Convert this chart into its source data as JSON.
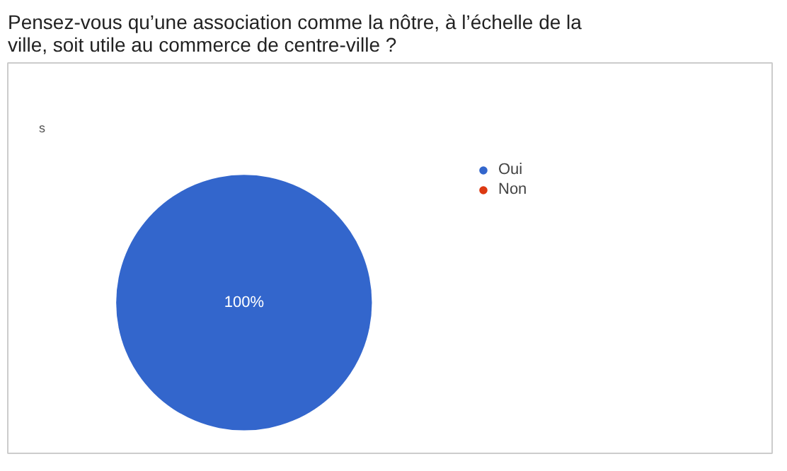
{
  "chart_data": {
    "type": "pie",
    "title": "Pensez-vous qu’une association comme la nôtre, à l’échelle de la ville, soit utile au commerce de centre-ville ?",
    "annotations": [
      "s"
    ],
    "categories": [
      "Oui",
      "Non"
    ],
    "values": [
      100,
      0
    ],
    "colors": [
      "#3366cc",
      "#dc3912"
    ],
    "value_labels": [
      "100%",
      null
    ],
    "legend": "right"
  }
}
